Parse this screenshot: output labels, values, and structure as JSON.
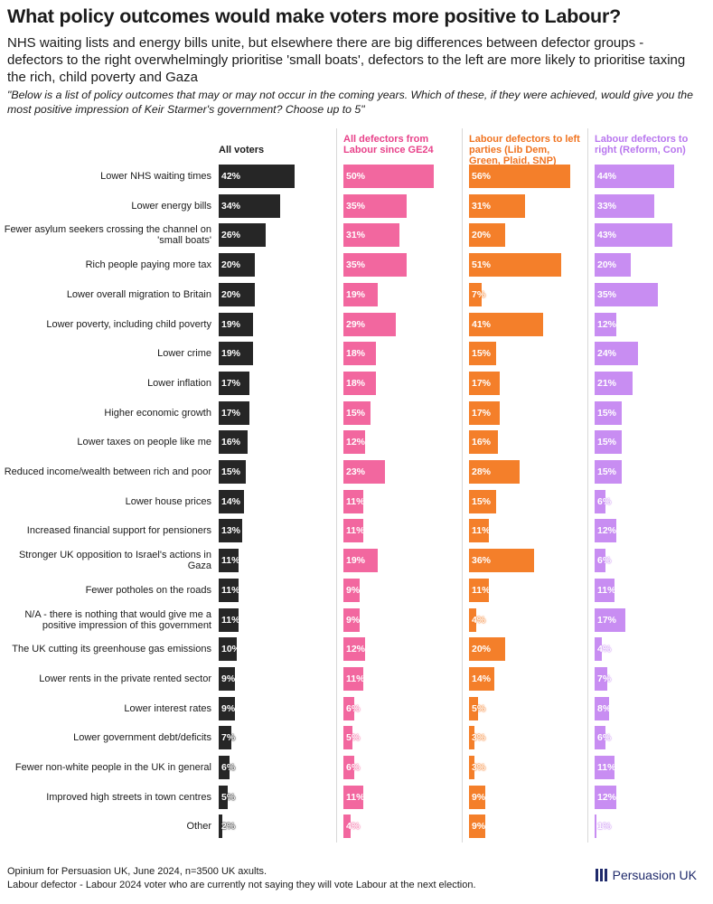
{
  "title": "What policy outcomes would make voters more positive to Labour?",
  "subtitle": "NHS waiting lists and energy bills unite, but elsewhere there are big differences between defector groups - defectors to the right overwhelmingly prioritise 'small boats', defectors to the left are more likely to prioritise taxing the rich, child poverty and Gaza",
  "question": "\"Below is a list of policy outcomes that may or may not occur in the coming years. Which of these, if they were achieved, would give you the most positive impression of Keir Starmer's government? Choose up to 5\"",
  "footer": {
    "source": "Opinium for Persuasion UK, June 2024, n=3500 UK axults.",
    "note": "Labour defector - Labour 2024 voter who are currently not saying they will vote Labour at the next election."
  },
  "logo": {
    "text": "Persuasion UK"
  },
  "chart_data": {
    "type": "bar",
    "orientation": "horizontal",
    "value_format": "percent",
    "categories": [
      "Lower NHS waiting times",
      "Lower energy bills",
      "Fewer asylum seekers crossing the channel on 'small boats'",
      "Rich people paying more tax",
      "Lower overall migration to Britain",
      "Lower poverty, including child poverty",
      "Lower crime",
      "Lower inflation",
      "Higher economic growth",
      "Lower taxes on people like me",
      "Reduced income/wealth between rich and poor",
      "Lower house prices",
      "Increased financial support for pensioners",
      "Stronger UK opposition to Israel's actions in Gaza",
      "Fewer potholes on the roads",
      "N/A - there is nothing that would give me a positive impression of this government",
      "The UK cutting its greenhouse gas emissions",
      "Lower rents in the private rented sector",
      "Lower interest rates",
      "Lower government debt/deficits",
      "Fewer non-white people in the UK in general",
      "Improved high streets in town centres",
      "Other"
    ],
    "series": [
      {
        "name": "All voters",
        "color": "#262626",
        "header_color": "#1a1a1a",
        "values": [
          42,
          34,
          26,
          20,
          20,
          19,
          19,
          17,
          17,
          16,
          15,
          14,
          13,
          11,
          11,
          11,
          10,
          9,
          9,
          7,
          6,
          5,
          2
        ]
      },
      {
        "name": "All defectors from Labour since GE24",
        "color": "#f2679f",
        "header_color": "#e8428a",
        "values": [
          50,
          35,
          31,
          35,
          19,
          29,
          18,
          18,
          15,
          12,
          23,
          11,
          11,
          19,
          9,
          9,
          12,
          11,
          6,
          5,
          6,
          11,
          4
        ]
      },
      {
        "name": "Labour defectors to left parties (Lib Dem, Green, Plaid, SNP)",
        "color": "#f47f2a",
        "header_color": "#f07320",
        "values": [
          56,
          31,
          20,
          51,
          7,
          41,
          15,
          17,
          17,
          16,
          28,
          15,
          11,
          36,
          11,
          4,
          20,
          14,
          5,
          3,
          3,
          9,
          9
        ]
      },
      {
        "name": "Labour defectors to right (Reform, Con)",
        "color": "#c88df2",
        "header_color": "#b876ee",
        "values": [
          44,
          33,
          43,
          20,
          35,
          12,
          24,
          21,
          15,
          15,
          15,
          6,
          12,
          6,
          11,
          17,
          4,
          7,
          8,
          6,
          11,
          12,
          1
        ]
      }
    ]
  }
}
